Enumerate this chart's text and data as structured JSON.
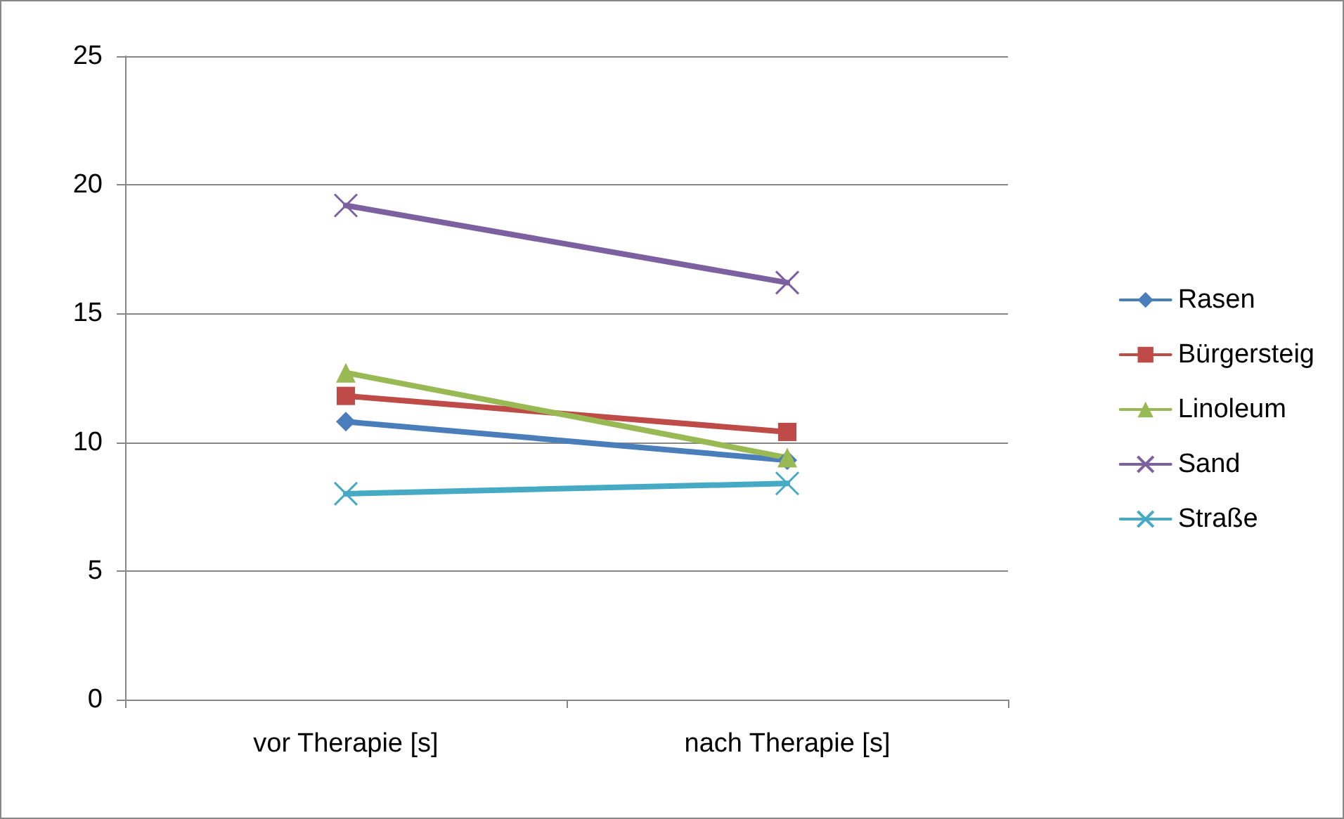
{
  "chart_data": {
    "type": "line",
    "categories": [
      "vor Therapie [s]",
      "nach Therapie [s]"
    ],
    "series": [
      {
        "name": "Rasen",
        "color": "#4a7ebb",
        "values": [
          10.8,
          9.3
        ],
        "marker": "diamond"
      },
      {
        "name": "Bürgersteig",
        "color": "#be4b48",
        "values": [
          11.8,
          10.4
        ],
        "marker": "square"
      },
      {
        "name": "Linoleum",
        "color": "#98b954",
        "values": [
          12.7,
          9.4
        ],
        "marker": "triangle"
      },
      {
        "name": "Sand",
        "color": "#7d60a0",
        "values": [
          19.2,
          16.2
        ],
        "marker": "cross"
      },
      {
        "name": "Straße",
        "color": "#46aac5",
        "values": [
          8.0,
          8.4
        ],
        "marker": "cross"
      }
    ],
    "ylim": [
      0,
      25
    ],
    "yticks": [
      0,
      5,
      10,
      15,
      20,
      25
    ],
    "grid": "y",
    "legend": "right"
  }
}
